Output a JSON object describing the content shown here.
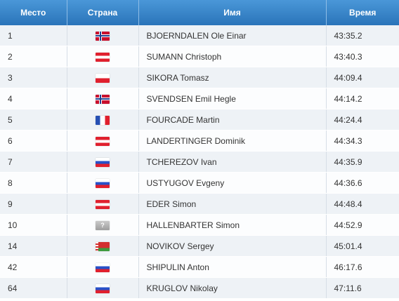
{
  "headers": {
    "place": "Место",
    "country": "Страна",
    "name": "Имя",
    "time": "Время"
  },
  "rows": [
    {
      "place": "1",
      "flag": "norway-flag",
      "name": "BJOERNDALEN Ole Einar",
      "time": "43:35.2"
    },
    {
      "place": "2",
      "flag": "austria-flag",
      "name": "SUMANN Christoph",
      "time": "43:40.3"
    },
    {
      "place": "3",
      "flag": "poland-flag",
      "name": "SIKORA Tomasz",
      "time": "44:09.4"
    },
    {
      "place": "4",
      "flag": "norway-flag",
      "name": "SVENDSEN Emil Hegle",
      "time": "44:14.2"
    },
    {
      "place": "5",
      "flag": "france-flag",
      "name": "FOURCADE Martin",
      "time": "44:24.4"
    },
    {
      "place": "6",
      "flag": "austria-flag",
      "name": "LANDERTINGER Dominik",
      "time": "44:34.3"
    },
    {
      "place": "7",
      "flag": "russia-flag",
      "name": "TCHEREZOV Ivan",
      "time": "44:35.9"
    },
    {
      "place": "8",
      "flag": "russia-flag",
      "name": "USTYUGOV Evgeny",
      "time": "44:36.6"
    },
    {
      "place": "9",
      "flag": "austria-flag",
      "name": "EDER Simon",
      "time": "44:48.4"
    },
    {
      "place": "10",
      "flag": "unknown-flag",
      "flag_text": "?",
      "name": "HALLENBARTER Simon",
      "time": "44:52.9"
    },
    {
      "place": "14",
      "flag": "belarus-flag",
      "name": "NOVIKOV Sergey",
      "time": "45:01.4"
    },
    {
      "place": "42",
      "flag": "russia-flag",
      "name": "SHIPULIN Anton",
      "time": "46:17.6"
    },
    {
      "place": "64",
      "flag": "russia-flag",
      "name": "KRUGLOV Nikolay",
      "time": "47:11.6"
    }
  ],
  "colors": {
    "header_top": "#4a97d8",
    "header_bottom": "#2a74b9",
    "row_odd": "#eef2f6",
    "row_even": "#fcfdfe",
    "text": "#333333"
  }
}
